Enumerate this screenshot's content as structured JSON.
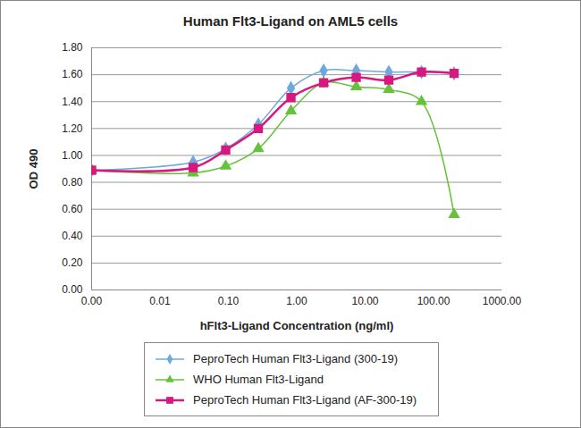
{
  "chart_data": {
    "type": "line",
    "title": "Human Flt3-Ligand on AML5 cells",
    "x_label": "hFlt3-Ligand Concentration (ng/ml)",
    "y_label": "OD 490",
    "log": "x",
    "grid": "y",
    "legend": "bottom",
    "x": [
      0.001,
      0.0305,
      0.0914,
      0.274,
      0.823,
      2.47,
      7.41,
      22.2,
      66.7,
      200
    ],
    "xlim": [
      0.001,
      1000
    ],
    "xticks": [
      {
        "value": 0.001,
        "label": "0.00"
      },
      {
        "value": 0.01,
        "label": "0.01"
      },
      {
        "value": 0.1,
        "label": "0.10"
      },
      {
        "value": 1,
        "label": "1.00"
      },
      {
        "value": 10,
        "label": "10.00"
      },
      {
        "value": 100,
        "label": "100.00"
      },
      {
        "value": 1000,
        "label": "1000.00"
      }
    ],
    "ylim": [
      0,
      1.8
    ],
    "yticks": [
      {
        "value": 0,
        "label": "0.00"
      },
      {
        "value": 0.2,
        "label": "0.20"
      },
      {
        "value": 0.4,
        "label": "0.40"
      },
      {
        "value": 0.6,
        "label": "0.60"
      },
      {
        "value": 0.8,
        "label": "0.80"
      },
      {
        "value": 1.0,
        "label": "1.00"
      },
      {
        "value": 1.2,
        "label": "1.20"
      },
      {
        "value": 1.4,
        "label": "1.40"
      },
      {
        "value": 1.6,
        "label": "1.60"
      },
      {
        "value": 1.8,
        "label": "1.80"
      }
    ],
    "series": [
      {
        "name": "PeproTech Human Flt3-Ligand (300-19)",
        "color": "#6fa8dc",
        "marker": "diamond",
        "values": [
          0.89,
          0.95,
          1.05,
          1.23,
          1.5,
          1.63,
          1.63,
          1.62,
          1.62,
          1.61
        ]
      },
      {
        "name": "WHO Human Flt3-Ligand",
        "color": "#66c23a",
        "marker": "triangle",
        "values": [
          0.89,
          0.87,
          0.92,
          1.05,
          1.33,
          1.54,
          1.51,
          1.49,
          1.4,
          0.56
        ]
      },
      {
        "name": "PeproTech Human Flt3-Ligand (AF-300-19)",
        "color": "#d6187f",
        "marker": "square",
        "values": [
          0.89,
          0.91,
          1.04,
          1.2,
          1.43,
          1.54,
          1.58,
          1.56,
          1.62,
          1.61
        ]
      }
    ]
  }
}
